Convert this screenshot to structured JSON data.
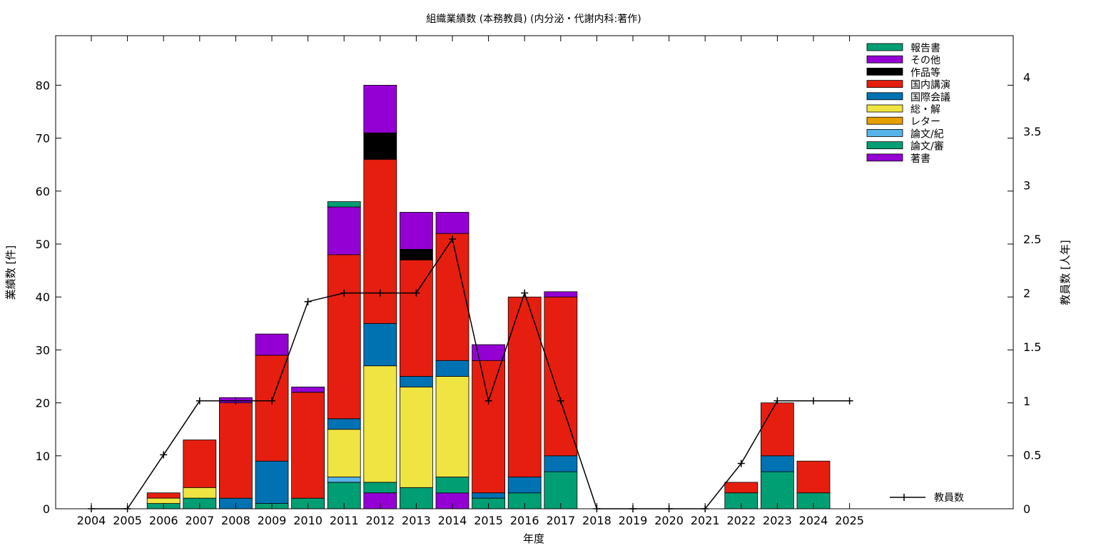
{
  "chart_data": {
    "type": "bar",
    "title": "組織業績数 (本務教員) (内分泌・代謝内科:著作)",
    "xlabel": "年度",
    "ylabel": "業績数 [件]",
    "y2label": "教員数 [人年]",
    "categories": [
      "2004",
      "2005",
      "2006",
      "2007",
      "2008",
      "2009",
      "2010",
      "2011",
      "2012",
      "2013",
      "2014",
      "2015",
      "2016",
      "2017",
      "2018",
      "2019",
      "2020",
      "2021",
      "2022",
      "2023",
      "2024",
      "2025"
    ],
    "ylim": [
      0,
      90
    ],
    "yticks": [
      0,
      10,
      20,
      30,
      40,
      50,
      60,
      70,
      80
    ],
    "y2lim": [
      0,
      4.4
    ],
    "y2ticks": [
      "0",
      "0.5",
      "1",
      "1.5",
      "2",
      "2.5",
      "3",
      "3.5",
      "4"
    ],
    "legend_position": "top-right",
    "stack_order": [
      "著書",
      "論文/審",
      "論文/紀",
      "レター",
      "総・解",
      "国際会議",
      "国内講演",
      "作品等",
      "その他",
      "報告書"
    ],
    "series": [
      {
        "name": "報告書",
        "color": "#009e73",
        "values": [
          0,
          0,
          0,
          0,
          0,
          0,
          0,
          1,
          0,
          0,
          0,
          0,
          0,
          0,
          0,
          0,
          0,
          0,
          0,
          0,
          0,
          0
        ]
      },
      {
        "name": "その他",
        "color": "#9400d3",
        "values": [
          0,
          0,
          0,
          0,
          1,
          4,
          1,
          9,
          9,
          7,
          4,
          3,
          0,
          1,
          0,
          0,
          0,
          0,
          0,
          0,
          0,
          0
        ]
      },
      {
        "name": "作品等",
        "color": "#000000",
        "values": [
          0,
          0,
          0,
          0,
          0,
          0,
          0,
          0,
          5,
          2,
          0,
          0,
          0,
          0,
          0,
          0,
          0,
          0,
          0,
          0,
          0,
          0
        ]
      },
      {
        "name": "国内講演",
        "color": "#e51e10",
        "values": [
          0,
          0,
          1,
          9,
          18,
          20,
          20,
          31,
          31,
          22,
          24,
          25,
          34,
          30,
          0,
          0,
          0,
          0,
          2,
          10,
          6,
          0
        ]
      },
      {
        "name": "国際会議",
        "color": "#0072b2",
        "values": [
          0,
          0,
          0,
          0,
          2,
          8,
          0,
          2,
          8,
          2,
          3,
          1,
          3,
          3,
          0,
          0,
          0,
          0,
          0,
          3,
          0,
          0
        ]
      },
      {
        "name": "総・解",
        "color": "#f0e442",
        "values": [
          0,
          0,
          1,
          2,
          0,
          0,
          0,
          9,
          22,
          19,
          19,
          0,
          0,
          0,
          0,
          0,
          0,
          0,
          0,
          0,
          0,
          0
        ]
      },
      {
        "name": "レター",
        "color": "#e69f00",
        "values": [
          0,
          0,
          0,
          0,
          0,
          0,
          0,
          0,
          0,
          0,
          0,
          0,
          0,
          0,
          0,
          0,
          0,
          0,
          0,
          0,
          0,
          0
        ]
      },
      {
        "name": "論文/紀",
        "color": "#56b4e9",
        "values": [
          0,
          0,
          0,
          0,
          0,
          0,
          0,
          1,
          0,
          0,
          0,
          0,
          0,
          0,
          0,
          0,
          0,
          0,
          0,
          0,
          0,
          0
        ]
      },
      {
        "name": "論文/審",
        "color": "#009e73",
        "values": [
          0,
          0,
          1,
          2,
          0,
          1,
          2,
          5,
          2,
          4,
          3,
          2,
          3,
          7,
          0,
          0,
          0,
          0,
          3,
          7,
          3,
          0
        ]
      },
      {
        "name": "著書",
        "color": "#9400d3",
        "values": [
          0,
          0,
          0,
          0,
          0,
          0,
          0,
          0,
          3,
          0,
          3,
          0,
          0,
          0,
          0,
          0,
          0,
          0,
          0,
          0,
          0,
          0
        ]
      }
    ],
    "line_series": {
      "name": "教員数",
      "axis": "right",
      "color": "#000000",
      "values": [
        0,
        0,
        0.5,
        1,
        1,
        1,
        1.92,
        2,
        2,
        2,
        2.5,
        1,
        2,
        1,
        0,
        0,
        0,
        0,
        0.42,
        1,
        1,
        1
      ]
    }
  }
}
